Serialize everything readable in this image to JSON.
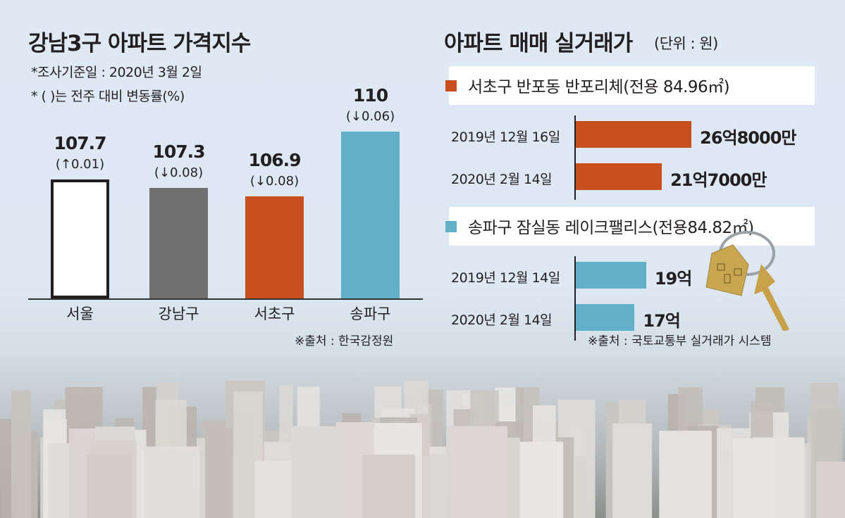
{
  "chart_data": [
    {
      "type": "bar",
      "title": "강남3구 아파트 가격지수",
      "notes": [
        "*조사기준일 : 2020년 3월 2일",
        "* (  )는 전주 대비 변동률(%)"
      ],
      "categories": [
        "서울",
        "강남구",
        "서초구",
        "송파구"
      ],
      "values": [
        107.7,
        107.3,
        106.9,
        110
      ],
      "value_labels": [
        "107.7",
        "107.3",
        "106.9",
        "110"
      ],
      "change_labels": [
        "(↑0.01)",
        "(↓0.08)",
        "(↓0.08)",
        "(↓0.06)"
      ],
      "colors": [
        "#ffffff",
        "#707070",
        "#c8501e",
        "#62b0c8"
      ],
      "source": "※출처 : 한국감정원"
    },
    {
      "type": "bar",
      "orientation": "horizontal",
      "title": "아파트 매매 실거래가",
      "unit": "(단위 : 원)",
      "groups": [
        {
          "name": "서초구 반포동 반포리체(전용 84.96㎡)",
          "color": "#c8501e",
          "categories": [
            "2019년 12월 16일",
            "2020년 2월 14일"
          ],
          "values": [
            26.8,
            21.7
          ],
          "value_labels": [
            "26억8000만",
            "21억7000만"
          ]
        },
        {
          "name": "송파구 잠실동 레이크팰리스(전용84.82㎡)",
          "color": "#62b0c8",
          "categories": [
            "2019년 12월 14일",
            "2020년 2월 14일"
          ],
          "values": [
            19,
            17
          ],
          "value_labels": [
            "19억",
            "17억"
          ]
        }
      ],
      "source": "※출처 : 국토교통부 실거래가 시스템"
    }
  ]
}
